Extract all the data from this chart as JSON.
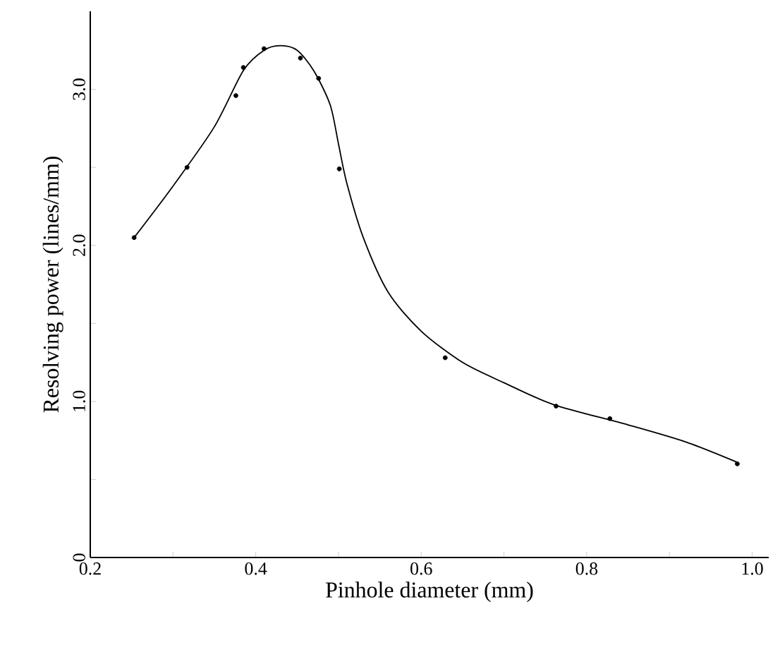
{
  "chart_data": {
    "type": "scatter",
    "xlabel": "Pinhole diameter (mm)",
    "ylabel": "Resolving power (lines/mm)",
    "xlim": [
      0.2,
      1.02
    ],
    "ylim": [
      0,
      3.5
    ],
    "xticks": [
      {
        "value": 0.2,
        "label": "0.2"
      },
      {
        "value": 0.3,
        "label": null
      },
      {
        "value": 0.4,
        "label": "0.4"
      },
      {
        "value": 0.5,
        "label": null
      },
      {
        "value": 0.6,
        "label": "0.6"
      },
      {
        "value": 0.7,
        "label": null
      },
      {
        "value": 0.8,
        "label": "0.8"
      },
      {
        "value": 0.9,
        "label": null
      },
      {
        "value": 1.0,
        "label": "1.0"
      }
    ],
    "yticks": [
      0,
      {
        "value": 0.5,
        "label": null
      },
      {
        "value": 1.0,
        "label": "1.0"
      },
      {
        "value": 1.5,
        "label": null
      },
      {
        "value": 2.0,
        "label": "2.0"
      },
      {
        "value": 2.5,
        "label": null
      },
      {
        "value": 3.0,
        "label": "3.0"
      }
    ],
    "grid": false,
    "series": [
      {
        "color": "#000000",
        "marker": "circle",
        "x": [
          0.253,
          0.317,
          0.376,
          0.385,
          0.41,
          0.454,
          0.476,
          0.501,
          0.629,
          0.763,
          0.828,
          0.982
        ],
        "values": [
          2.05,
          2.5,
          2.96,
          3.14,
          3.26,
          3.2,
          3.07,
          2.49,
          1.28,
          0.97,
          0.89,
          0.6
        ]
      },
      {
        "type": "line",
        "color": "#000000",
        "marker": "none",
        "line_style": "solid",
        "x": [
          0.253,
          0.3,
          0.35,
          0.385,
          0.41,
          0.43,
          0.45,
          0.47,
          0.49,
          0.5,
          0.51,
          0.53,
          0.56,
          0.6,
          0.65,
          0.7,
          0.76,
          0.85,
          0.92,
          0.982
        ],
        "values": [
          2.05,
          2.38,
          2.76,
          3.12,
          3.25,
          3.28,
          3.25,
          3.12,
          2.9,
          2.65,
          2.4,
          2.05,
          1.7,
          1.45,
          1.25,
          1.12,
          0.98,
          0.85,
          0.74,
          0.61
        ]
      }
    ]
  }
}
